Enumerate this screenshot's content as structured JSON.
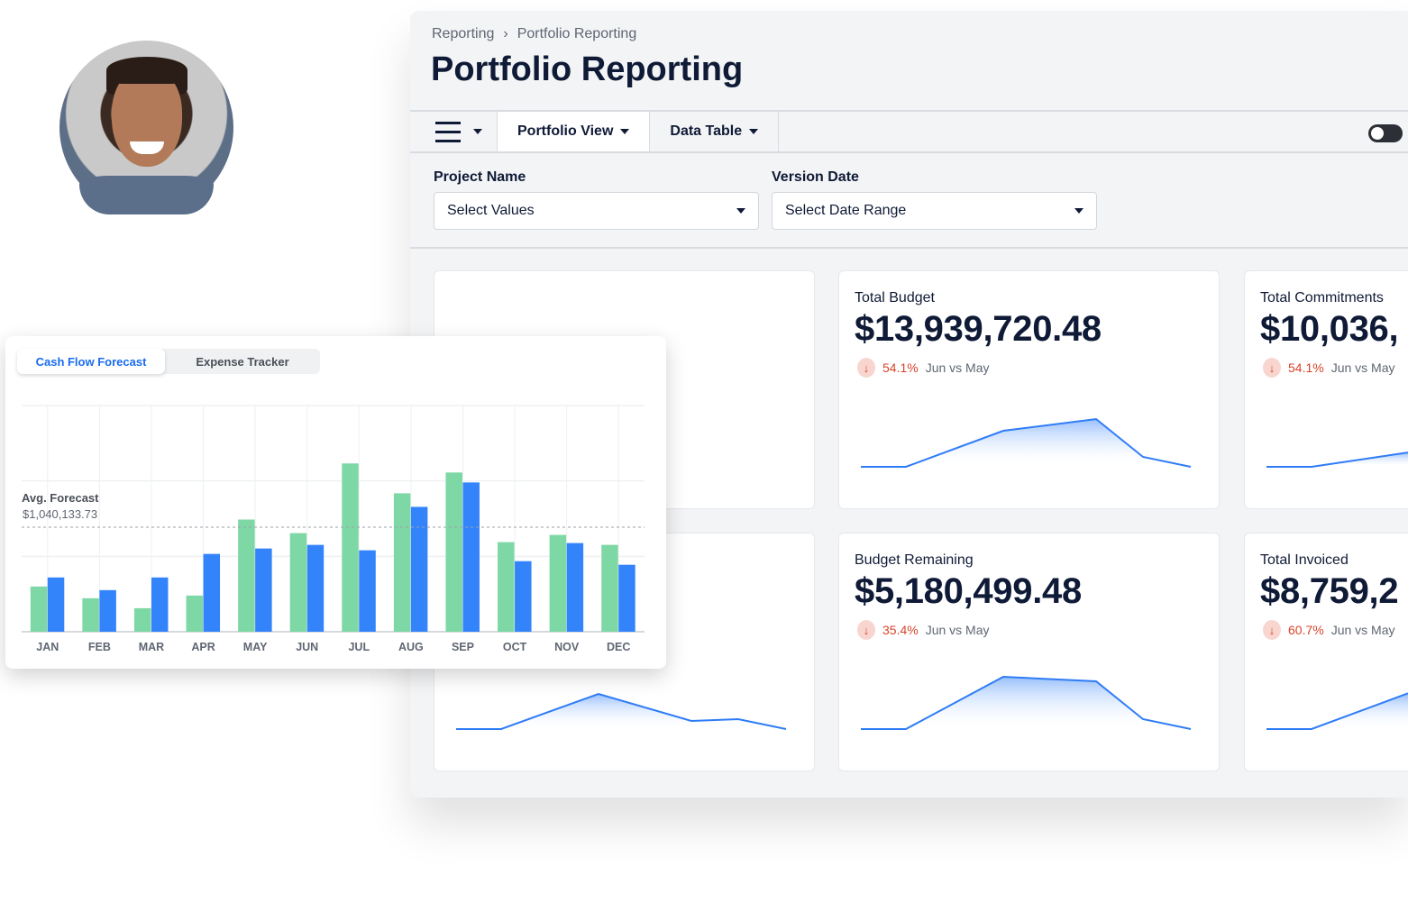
{
  "breadcrumb": {
    "items": [
      "Reporting",
      "Portfolio Reporting"
    ]
  },
  "page_title": "Portfolio Reporting",
  "toolbar": {
    "portfolio_view": "Portfolio View",
    "data_table": "Data Table",
    "toggle_on": false
  },
  "filters": {
    "project_name": {
      "label": "Project Name",
      "value": "Select Values"
    },
    "version_date": {
      "label": "Version Date",
      "value": "Select Date Range"
    }
  },
  "cards": [
    {
      "label": "",
      "value": "",
      "change": "",
      "compare": "",
      "spark": [
        0,
        0,
        0.39,
        0.09,
        0.11,
        0
      ]
    },
    {
      "label": "Total Budget",
      "value": "$13,939,720.48",
      "change": "54.1%",
      "compare": "Jun vs May",
      "spark": [
        0,
        0,
        0.4,
        0.53,
        0.11,
        0
      ]
    },
    {
      "label": "Total Commitments",
      "value": "$10,036,",
      "change": "54.1%",
      "compare": "Jun vs May",
      "spark": [
        0,
        0,
        0.16,
        0.3,
        0.4,
        0.45
      ]
    },
    {
      "label": "Budget Remaining",
      "value": "$5,180,499.48",
      "change": "35.4%",
      "compare": "Jun vs May",
      "spark": [
        0,
        0,
        0.58,
        0.53,
        0.11,
        0
      ]
    },
    {
      "label": "Total Invoiced",
      "value": "$8,759,2",
      "change": "60.7%",
      "compare": "Jun vs May",
      "spark": [
        0,
        0,
        0.4,
        0.6,
        0.7,
        0.75
      ]
    }
  ],
  "colors": {
    "accent": "#1a6cf0",
    "line": "#2f7cf6",
    "green": "#7dd8a5",
    "blue": "#3384fb",
    "negative": "#d9432b"
  },
  "chart_data": {
    "type": "bar",
    "tabs": [
      "Cash Flow Forecast",
      "Expense Tracker"
    ],
    "active_tab": "Cash Flow Forecast",
    "categories": [
      "JAN",
      "FEB",
      "MAR",
      "APR",
      "MAY",
      "JUN",
      "JUL",
      "AUG",
      "SEP",
      "OCT",
      "NOV",
      "DEC"
    ],
    "series": [
      {
        "color": "#7dd8a5",
        "values": [
          450000,
          333000,
          234000,
          360000,
          1116000,
          981000,
          1674000,
          1377000,
          1584000,
          891000,
          963000,
          864000
        ]
      },
      {
        "color": "#3384fb",
        "values": [
          540000,
          414000,
          540000,
          774000,
          828000,
          864000,
          810000,
          1242000,
          1485000,
          702000,
          882000,
          666000
        ]
      }
    ],
    "reference_line": {
      "label": "Avg. Forecast",
      "value_label": "$1,040,133.73",
      "value": 1040133.73
    },
    "ylim": [
      0,
      2250000
    ],
    "grid": true
  }
}
